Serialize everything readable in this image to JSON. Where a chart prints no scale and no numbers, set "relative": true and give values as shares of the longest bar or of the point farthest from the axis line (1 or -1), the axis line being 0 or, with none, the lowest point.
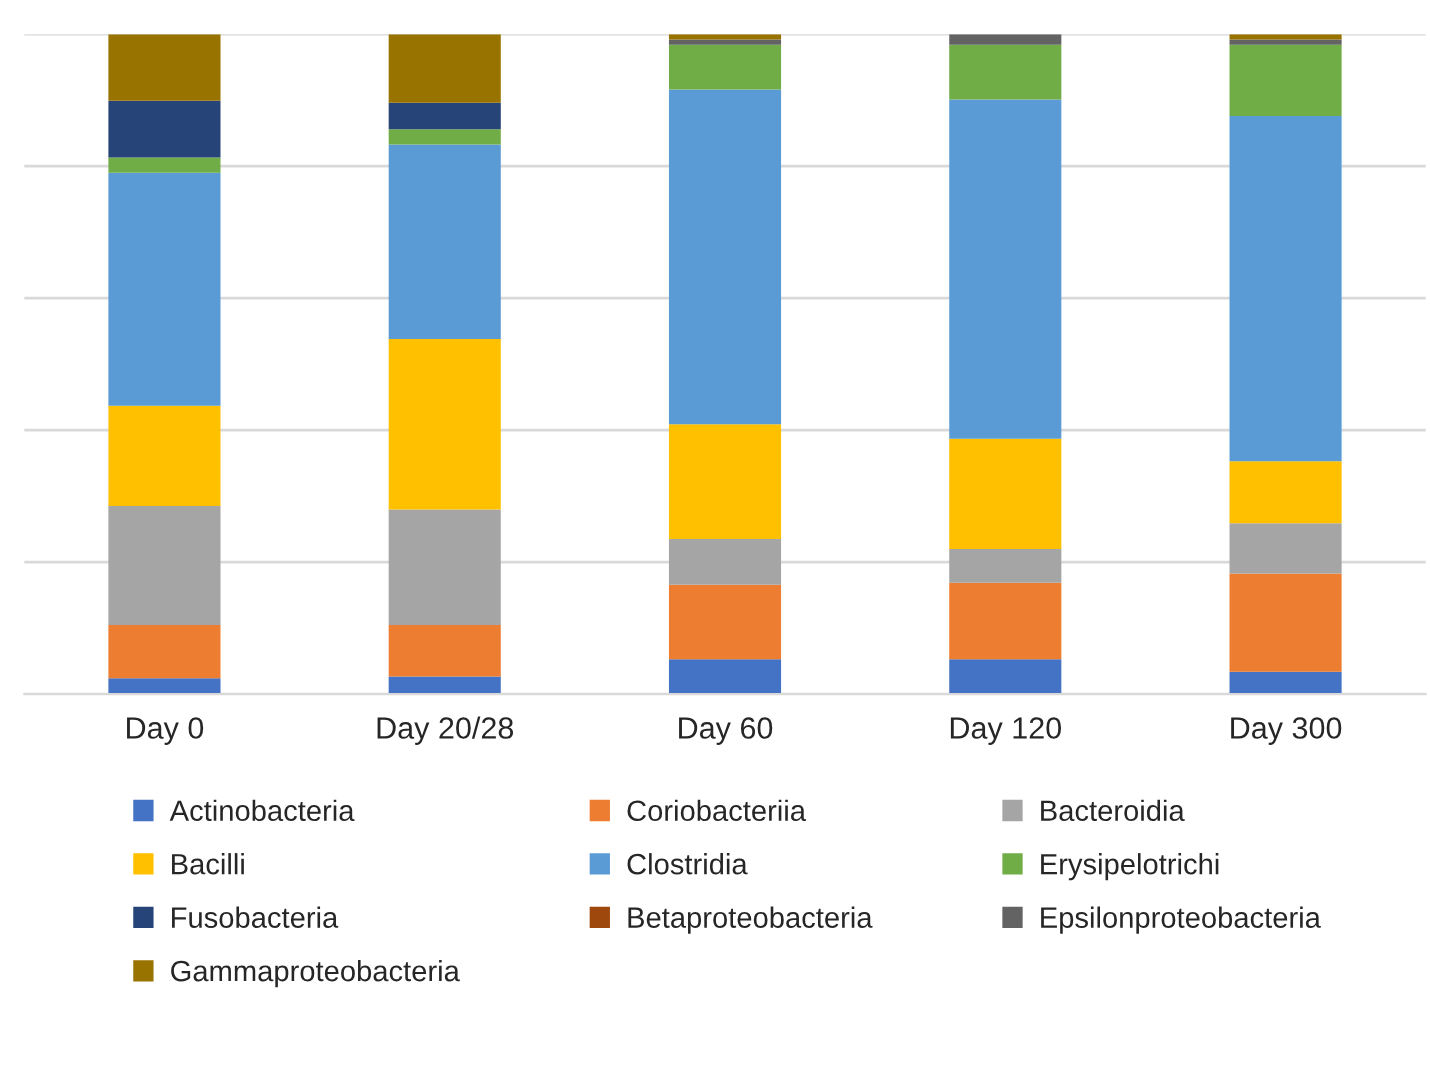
{
  "chart_data": {
    "type": "bar",
    "stacked": true,
    "relative": true,
    "grid": "y",
    "legend": "bottom",
    "tick_labels": "x",
    "categories": [
      "Day 0",
      "Day 20/28",
      "Day 60",
      "Day 120",
      "Day 300"
    ],
    "series": [
      {
        "name": "Actinobacteria",
        "color": "#4472c4",
        "values": [
          0.024,
          0.027,
          0.053,
          0.053,
          0.034
        ]
      },
      {
        "name": "Coriobacteriia",
        "color": "#ed7d31",
        "values": [
          0.081,
          0.078,
          0.113,
          0.116,
          0.149
        ]
      },
      {
        "name": "Bacteroidia",
        "color": "#a5a5a5",
        "values": [
          0.18,
          0.175,
          0.069,
          0.051,
          0.076
        ]
      },
      {
        "name": "Bacilli",
        "color": "#ffc000",
        "values": [
          0.152,
          0.258,
          0.174,
          0.167,
          0.094
        ]
      },
      {
        "name": "Clostridia",
        "color": "#5b9bd5",
        "values": [
          0.353,
          0.295,
          0.507,
          0.514,
          0.523
        ]
      },
      {
        "name": "Erysipelotrichi",
        "color": "#70ad47",
        "values": [
          0.023,
          0.023,
          0.068,
          0.083,
          0.108
        ]
      },
      {
        "name": "Fusobacteria",
        "color": "#264478",
        "values": [
          0.086,
          0.04,
          null,
          null,
          null
        ]
      },
      {
        "name": "Betaproteobacteria",
        "color": "#9e480e",
        "values": [
          null,
          null,
          null,
          null,
          null
        ]
      },
      {
        "name": "Epsilonproteobacteria",
        "color": "#636363",
        "values": [
          null,
          null,
          0.008,
          0.016,
          0.008
        ]
      },
      {
        "name": "Gammaproteobacteria",
        "color": "#997300",
        "values": [
          0.101,
          0.104,
          0.008,
          null,
          0.008
        ]
      }
    ]
  }
}
